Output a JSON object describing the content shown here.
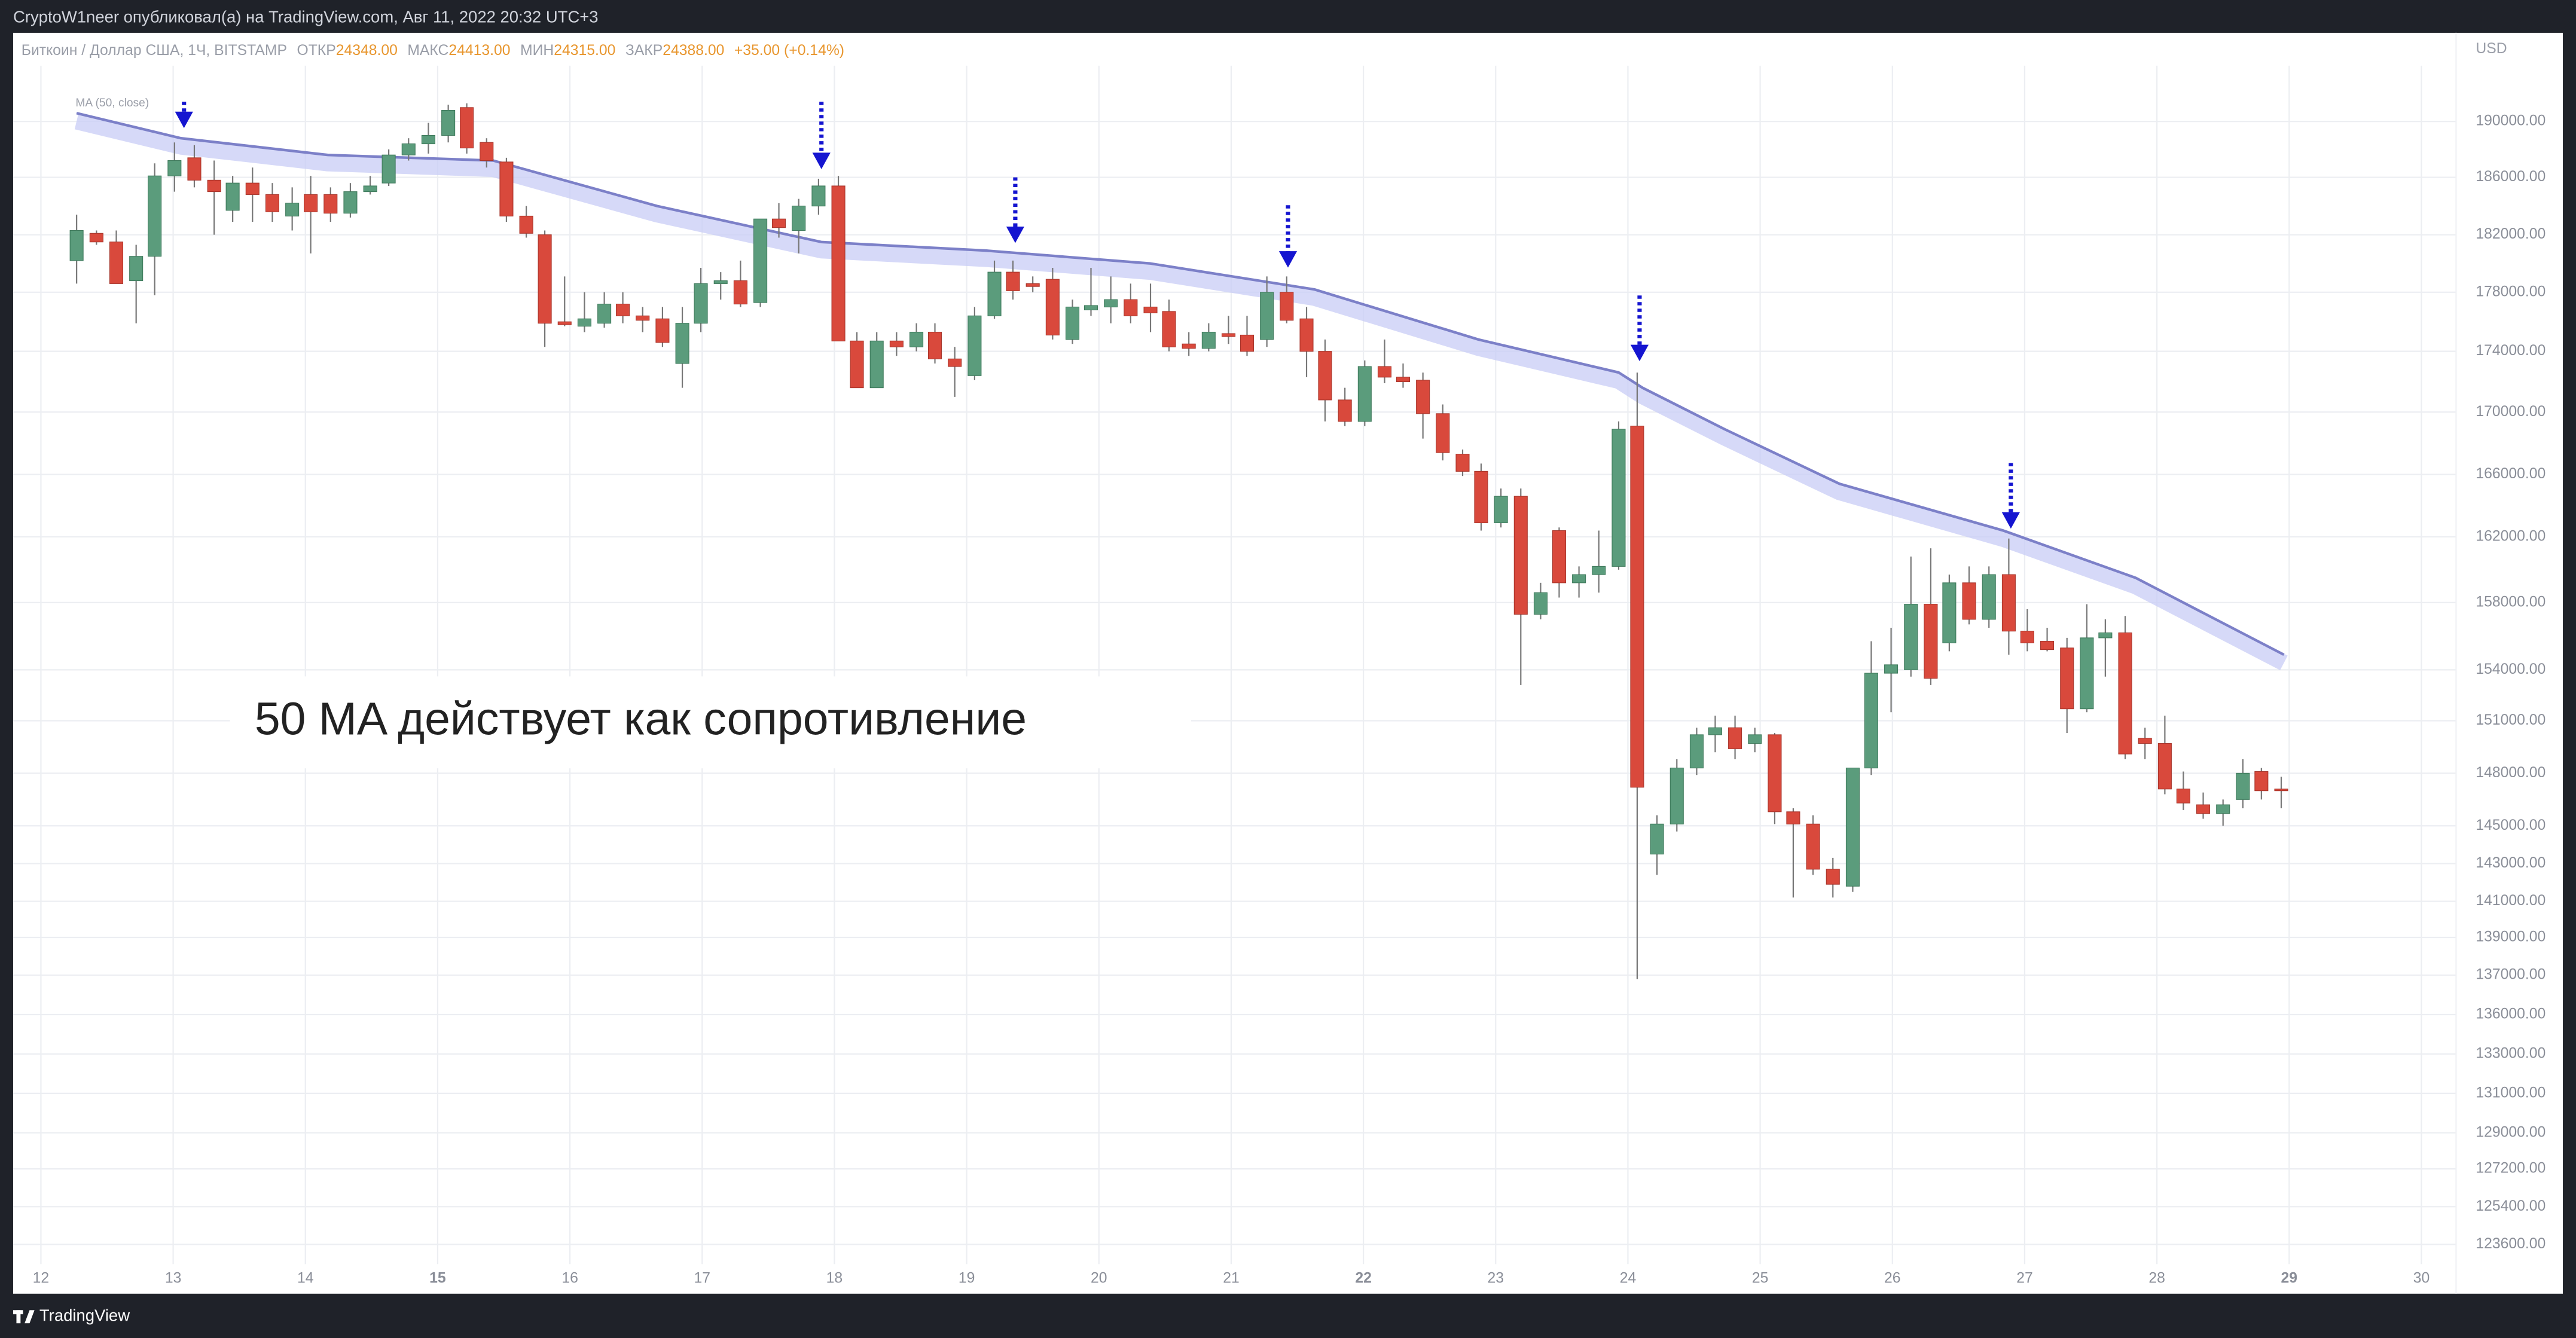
{
  "header": {
    "published": "CryptoW1neer опубликовал(а) на TradingView.com, Авг 11, 2022 20:32 UTC+3"
  },
  "footer": {
    "brand": "TradingView"
  },
  "chart_data": {
    "type": "candlestick",
    "symbol": "Биткоин / Доллар США, 1Ч, BITSTAMP",
    "legend": [
      {
        "label": "ОТКР",
        "value": "24348.00"
      },
      {
        "label": "МАКС",
        "value": "24413.00"
      },
      {
        "label": "МИН",
        "value": "24315.00"
      },
      {
        "label": "ЗАКР",
        "value": "24388.00"
      }
    ],
    "change": "+35.00 (+0.14%)",
    "currency": "USD",
    "annotation": "50 MA действует как сопротивление",
    "up_color": "#5b9c7c",
    "down_color": "#d9493c",
    "xlim": [
      11.79,
      30.2
    ],
    "xticks": [
      12,
      13,
      14,
      15,
      16,
      17,
      18,
      19,
      20,
      21,
      22,
      23,
      24,
      25,
      26,
      27,
      28,
      29,
      30
    ],
    "ylim": [
      122500,
      191500
    ],
    "yticks": [
      {
        "value": 190000,
        "label": "190000.00"
      },
      {
        "value": 186000,
        "label": "186000.00"
      },
      {
        "value": 182000,
        "label": "182000.00"
      },
      {
        "value": 178000,
        "label": "178000.00"
      },
      {
        "value": 174000,
        "label": "174000.00"
      },
      {
        "value": 170000,
        "label": "170000.00"
      },
      {
        "value": 166000,
        "label": "166000.00"
      },
      {
        "value": 162000,
        "label": "162000.00"
      },
      {
        "value": 158000,
        "label": "158000.00"
      },
      {
        "value": 154000,
        "label": "154000.00"
      },
      {
        "value": 151000,
        "label": "151000.00"
      },
      {
        "value": 148000,
        "label": "148000.00"
      },
      {
        "value": 145000,
        "label": "145000.00"
      },
      {
        "value": 143000,
        "label": "143000.00"
      },
      {
        "value": 141000,
        "label": "141000.00"
      },
      {
        "value": 139000,
        "label": "139000.00"
      },
      {
        "value": 137000,
        "label": "137000.00"
      },
      {
        "value": 136000,
        "label": "136000.00"
      },
      {
        "value": 133000,
        "label": "133000.00"
      },
      {
        "value": 131000,
        "label": "131000.00"
      },
      {
        "value": 129000,
        "label": "129000.00"
      },
      {
        "value": 127200,
        "label": "127200.00"
      },
      {
        "value": 125400,
        "label": "125400.00"
      },
      {
        "value": 123600,
        "label": "123600.00"
      }
    ],
    "grid": true,
    "x": [
      12.27,
      12.42,
      12.57,
      12.72,
      12.86,
      13.01,
      13.16,
      13.31,
      13.45,
      13.6,
      13.75,
      13.9,
      14.04,
      14.19,
      14.34,
      14.49,
      14.63,
      14.78,
      14.93,
      15.08,
      15.22,
      15.37,
      15.52,
      15.67,
      15.81,
      15.96,
      16.11,
      16.26,
      16.4,
      16.55,
      16.7,
      16.85,
      16.99,
      17.14,
      17.29,
      17.44,
      17.58,
      17.73,
      17.88,
      18.03,
      18.17,
      18.32,
      18.47,
      18.62,
      18.76,
      18.91,
      19.06,
      19.21,
      19.35,
      19.5,
      19.65,
      19.8,
      19.94,
      20.09,
      20.24,
      20.39,
      20.53,
      20.68,
      20.83,
      20.98,
      21.12,
      21.27,
      21.42,
      21.57,
      21.71,
      21.86,
      22.01,
      22.16,
      22.3,
      22.45,
      22.6,
      22.75,
      22.89,
      23.04,
      23.19,
      23.34,
      23.48,
      23.63,
      23.78,
      23.93,
      24.07,
      24.22,
      24.37,
      24.52,
      24.66,
      24.81,
      24.96,
      25.11,
      25.25,
      25.4,
      25.55,
      25.7,
      25.84,
      25.99,
      26.14,
      26.29,
      26.43,
      26.58,
      26.73,
      26.88,
      27.02,
      27.17,
      27.32,
      27.47,
      27.61,
      27.76,
      27.91,
      28.06,
      28.2,
      28.35,
      28.5,
      28.65,
      28.79,
      28.94
    ],
    "open": [
      180200,
      182100,
      181500,
      178800,
      180500,
      186100,
      187400,
      185800,
      183700,
      185600,
      184800,
      183300,
      184800,
      184800,
      183500,
      185000,
      185600,
      187600,
      188400,
      189000,
      191000,
      188500,
      187100,
      183300,
      182000,
      176000,
      175700,
      175900,
      177200,
      176400,
      176200,
      173200,
      175900,
      178600,
      178800,
      177300,
      183100,
      182300,
      184000,
      185400,
      174700,
      171600,
      174700,
      174300,
      175300,
      173500,
      172400,
      176400,
      179400,
      178600,
      178900,
      174800,
      176800,
      177000,
      177500,
      177000,
      176700,
      174500,
      174200,
      175200,
      175100,
      174800,
      178000,
      176200,
      174000,
      170800,
      169400,
      173000,
      172300,
      172100,
      169900,
      167300,
      166200,
      162900,
      164600,
      157300,
      162400,
      159200,
      159700,
      160200,
      169100,
      143500,
      145100,
      148300,
      150200,
      150600,
      149700,
      150200,
      145800,
      145100,
      142700,
      141800,
      148300,
      153800,
      154000,
      157900,
      155600,
      159200,
      157000,
      159700,
      156300,
      155700,
      155300,
      151700,
      155900,
      156200,
      150000,
      149700,
      147100,
      146200,
      145700,
      146500,
      148100,
      147100
    ],
    "high": [
      183400,
      182300,
      182300,
      181300,
      187000,
      188500,
      188300,
      187200,
      186100,
      186700,
      185600,
      185300,
      186100,
      185300,
      185600,
      186100,
      188000,
      188800,
      189900,
      191200,
      191300,
      188800,
      187400,
      184000,
      182300,
      179100,
      178000,
      178000,
      178000,
      177000,
      177000,
      177000,
      179700,
      179400,
      180200,
      182900,
      184200,
      184500,
      185900,
      186100,
      175300,
      175300,
      175300,
      175900,
      175900,
      174300,
      177000,
      180200,
      180200,
      179100,
      179700,
      177500,
      179700,
      179100,
      178600,
      178600,
      177500,
      175300,
      175900,
      176400,
      176400,
      179100,
      179100,
      177000,
      174800,
      171600,
      173400,
      174800,
      173200,
      172600,
      170500,
      167600,
      166700,
      165100,
      165100,
      159200,
      162600,
      160200,
      162400,
      169400,
      172600,
      145600,
      148800,
      150600,
      151300,
      151300,
      150600,
      150300,
      146000,
      145600,
      143300,
      148300,
      155700,
      156500,
      160800,
      161300,
      159700,
      160200,
      160200,
      161900,
      157600,
      156500,
      155900,
      157900,
      157000,
      157200,
      150600,
      151300,
      148100,
      146900,
      146500,
      148800,
      148300,
      147800
    ],
    "low": [
      178600,
      181300,
      178600,
      175900,
      177800,
      185000,
      185300,
      182000,
      182900,
      182900,
      182900,
      182300,
      180700,
      182900,
      183200,
      184800,
      185400,
      187200,
      187700,
      188500,
      187700,
      186700,
      182900,
      181800,
      174300,
      175700,
      175300,
      175600,
      175900,
      175300,
      174300,
      171600,
      175300,
      177500,
      177000,
      177000,
      181800,
      180700,
      183400,
      174700,
      171600,
      171600,
      173700,
      174000,
      173200,
      171000,
      172100,
      176200,
      177500,
      178000,
      174800,
      174500,
      176400,
      175900,
      175900,
      175300,
      174000,
      173700,
      174000,
      174500,
      173700,
      174300,
      175900,
      172300,
      169400,
      169100,
      169100,
      171900,
      171600,
      168300,
      166900,
      165900,
      162400,
      162600,
      153100,
      157000,
      158300,
      158300,
      158600,
      160000,
      136900,
      142400,
      144700,
      147900,
      149200,
      148800,
      149200,
      145100,
      141200,
      142400,
      141200,
      141500,
      147900,
      151500,
      153600,
      153100,
      155100,
      156700,
      156500,
      154900,
      155100,
      155100,
      150300,
      151500,
      153600,
      148800,
      148800,
      146800,
      145900,
      145400,
      145000,
      146000,
      146500,
      146000
    ],
    "close": [
      182300,
      181500,
      178600,
      180500,
      186100,
      187200,
      185800,
      185000,
      185600,
      184800,
      183600,
      184200,
      183600,
      183500,
      185000,
      185400,
      187600,
      188400,
      189000,
      190800,
      188100,
      187200,
      183300,
      182100,
      175900,
      175800,
      176200,
      177200,
      176400,
      176100,
      174600,
      175900,
      178600,
      178800,
      177200,
      183100,
      182500,
      184000,
      185400,
      174700,
      171600,
      174700,
      174300,
      175300,
      173500,
      173000,
      176400,
      179400,
      178100,
      178400,
      175100,
      177000,
      177100,
      177500,
      176400,
      176600,
      174300,
      174200,
      175300,
      175000,
      174000,
      178000,
      176100,
      174000,
      170800,
      169400,
      173000,
      172300,
      172000,
      169900,
      167400,
      166200,
      162900,
      164600,
      157300,
      158600,
      159200,
      159700,
      160200,
      168900,
      147200,
      145100,
      148300,
      150200,
      150600,
      149400,
      150200,
      145800,
      145100,
      142700,
      141900,
      148300,
      153800,
      154300,
      157900,
      153500,
      159200,
      157000,
      159700,
      156300,
      155600,
      155200,
      151700,
      155900,
      156200,
      149100,
      149700,
      147100,
      146300,
      145700,
      146200,
      148000,
      147000,
      147000
    ],
    "series": [
      {
        "name": "MA (50, close)",
        "color": "#7c80c8",
        "x": [
          12.27,
          13.06,
          14.17,
          15.42,
          16.66,
          17.9,
          19.14,
          20.39,
          21.63,
          22.87,
          23.93,
          24.11,
          24.73,
          25.6,
          26.84,
          27.84,
          28.96
        ],
        "values": [
          190600,
          188800,
          187600,
          187200,
          184000,
          181500,
          180900,
          180000,
          178200,
          174800,
          172600,
          171600,
          168900,
          165400,
          162400,
          159500,
          154900
        ]
      }
    ]
  }
}
